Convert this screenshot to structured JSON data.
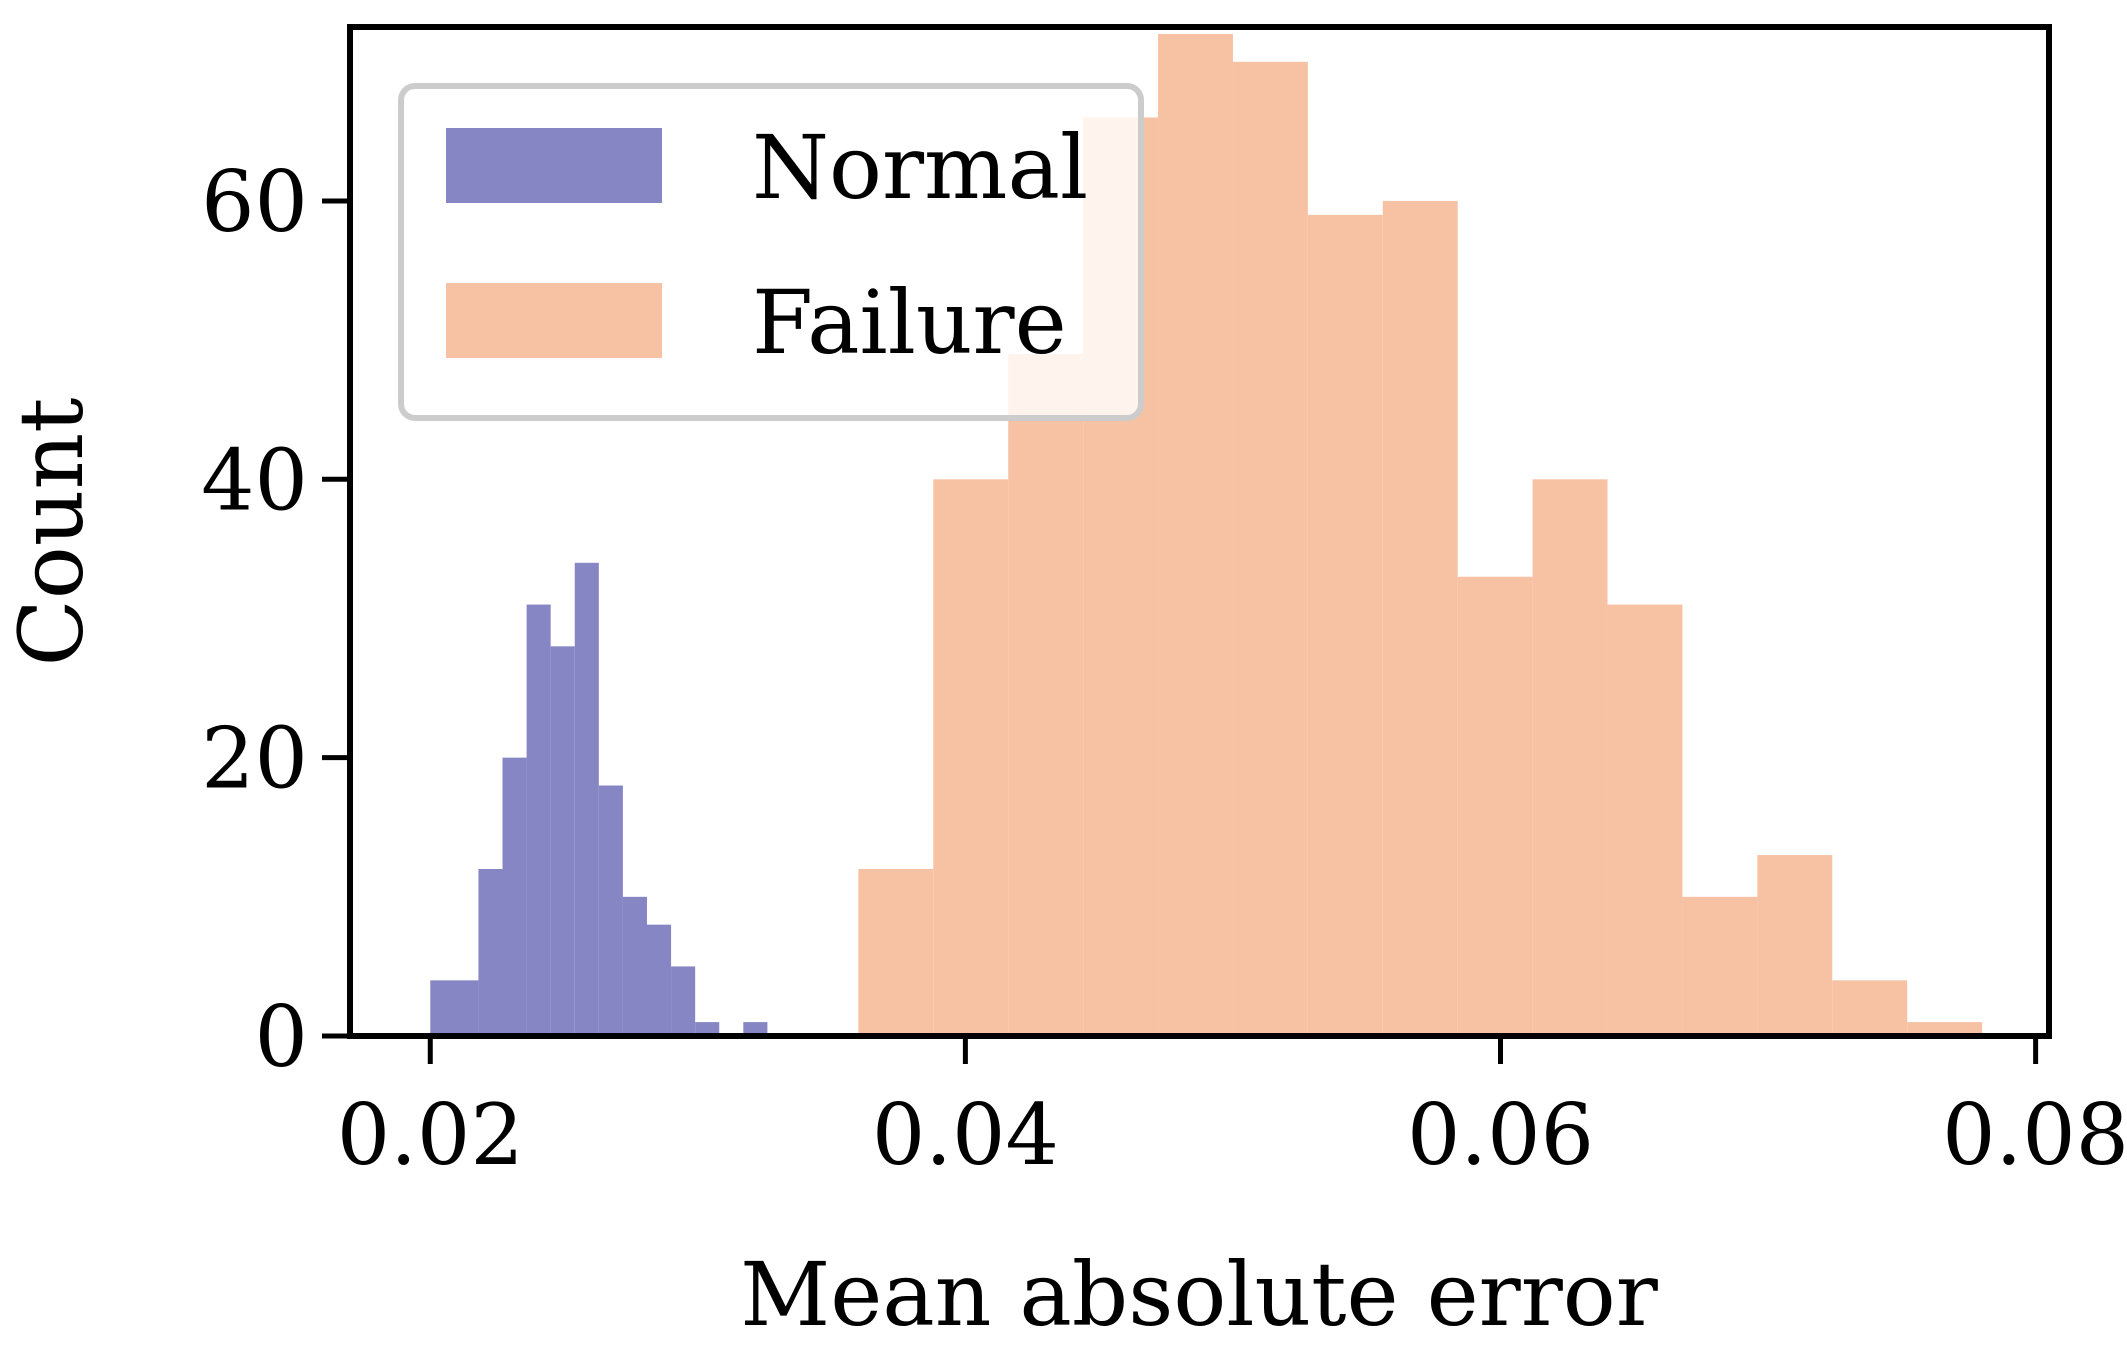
{
  "chart_data": {
    "type": "histogram",
    "title": "",
    "xlabel": "Mean absolute error",
    "ylabel": "Count",
    "xlim": [
      0.017,
      0.0805
    ],
    "ylim": [
      0,
      72.5
    ],
    "xticks": [
      {
        "value": 0.02,
        "label": "0.02"
      },
      {
        "value": 0.04,
        "label": "0.04"
      },
      {
        "value": 0.06,
        "label": "0.06"
      },
      {
        "value": 0.08,
        "label": "0.08"
      }
    ],
    "yticks": [
      {
        "value": 0,
        "label": "0"
      },
      {
        "value": 20,
        "label": "20"
      },
      {
        "value": 40,
        "label": "40"
      },
      {
        "value": 60,
        "label": "60"
      }
    ],
    "grid": false,
    "legend_position": "top-left",
    "series": [
      {
        "name": "Normal",
        "color": "#8786c5",
        "bins": [
          {
            "x0": 0.02,
            "x1": 0.0218,
            "count": 4
          },
          {
            "x0": 0.0218,
            "x1": 0.0227,
            "count": 12
          },
          {
            "x0": 0.0227,
            "x1": 0.0236,
            "count": 20
          },
          {
            "x0": 0.0236,
            "x1": 0.0245,
            "count": 31
          },
          {
            "x0": 0.0245,
            "x1": 0.0254,
            "count": 28
          },
          {
            "x0": 0.0254,
            "x1": 0.0263,
            "count": 34
          },
          {
            "x0": 0.0263,
            "x1": 0.0272,
            "count": 18
          },
          {
            "x0": 0.0272,
            "x1": 0.0281,
            "count": 10
          },
          {
            "x0": 0.0281,
            "x1": 0.029,
            "count": 8
          },
          {
            "x0": 0.029,
            "x1": 0.0299,
            "count": 5
          },
          {
            "x0": 0.0299,
            "x1": 0.0308,
            "count": 1
          },
          {
            "x0": 0.0308,
            "x1": 0.0317,
            "count": 0
          },
          {
            "x0": 0.0317,
            "x1": 0.0326,
            "count": 1
          }
        ]
      },
      {
        "name": "Failure",
        "color": "#f7c2a4",
        "bins": [
          {
            "x0": 0.036,
            "x1": 0.0388,
            "count": 12
          },
          {
            "x0": 0.0388,
            "x1": 0.0416,
            "count": 40
          },
          {
            "x0": 0.0416,
            "x1": 0.0444,
            "count": 49
          },
          {
            "x0": 0.0444,
            "x1": 0.0472,
            "count": 66
          },
          {
            "x0": 0.0472,
            "x1": 0.05,
            "count": 72
          },
          {
            "x0": 0.05,
            "x1": 0.0528,
            "count": 70
          },
          {
            "x0": 0.0528,
            "x1": 0.0556,
            "count": 59
          },
          {
            "x0": 0.0556,
            "x1": 0.0584,
            "count": 60
          },
          {
            "x0": 0.0584,
            "x1": 0.0612,
            "count": 33
          },
          {
            "x0": 0.0612,
            "x1": 0.064,
            "count": 40
          },
          {
            "x0": 0.064,
            "x1": 0.0668,
            "count": 31
          },
          {
            "x0": 0.0668,
            "x1": 0.0696,
            "count": 10
          },
          {
            "x0": 0.0696,
            "x1": 0.0724,
            "count": 13
          },
          {
            "x0": 0.0724,
            "x1": 0.0752,
            "count": 4
          },
          {
            "x0": 0.0752,
            "x1": 0.078,
            "count": 1
          }
        ]
      }
    ]
  }
}
